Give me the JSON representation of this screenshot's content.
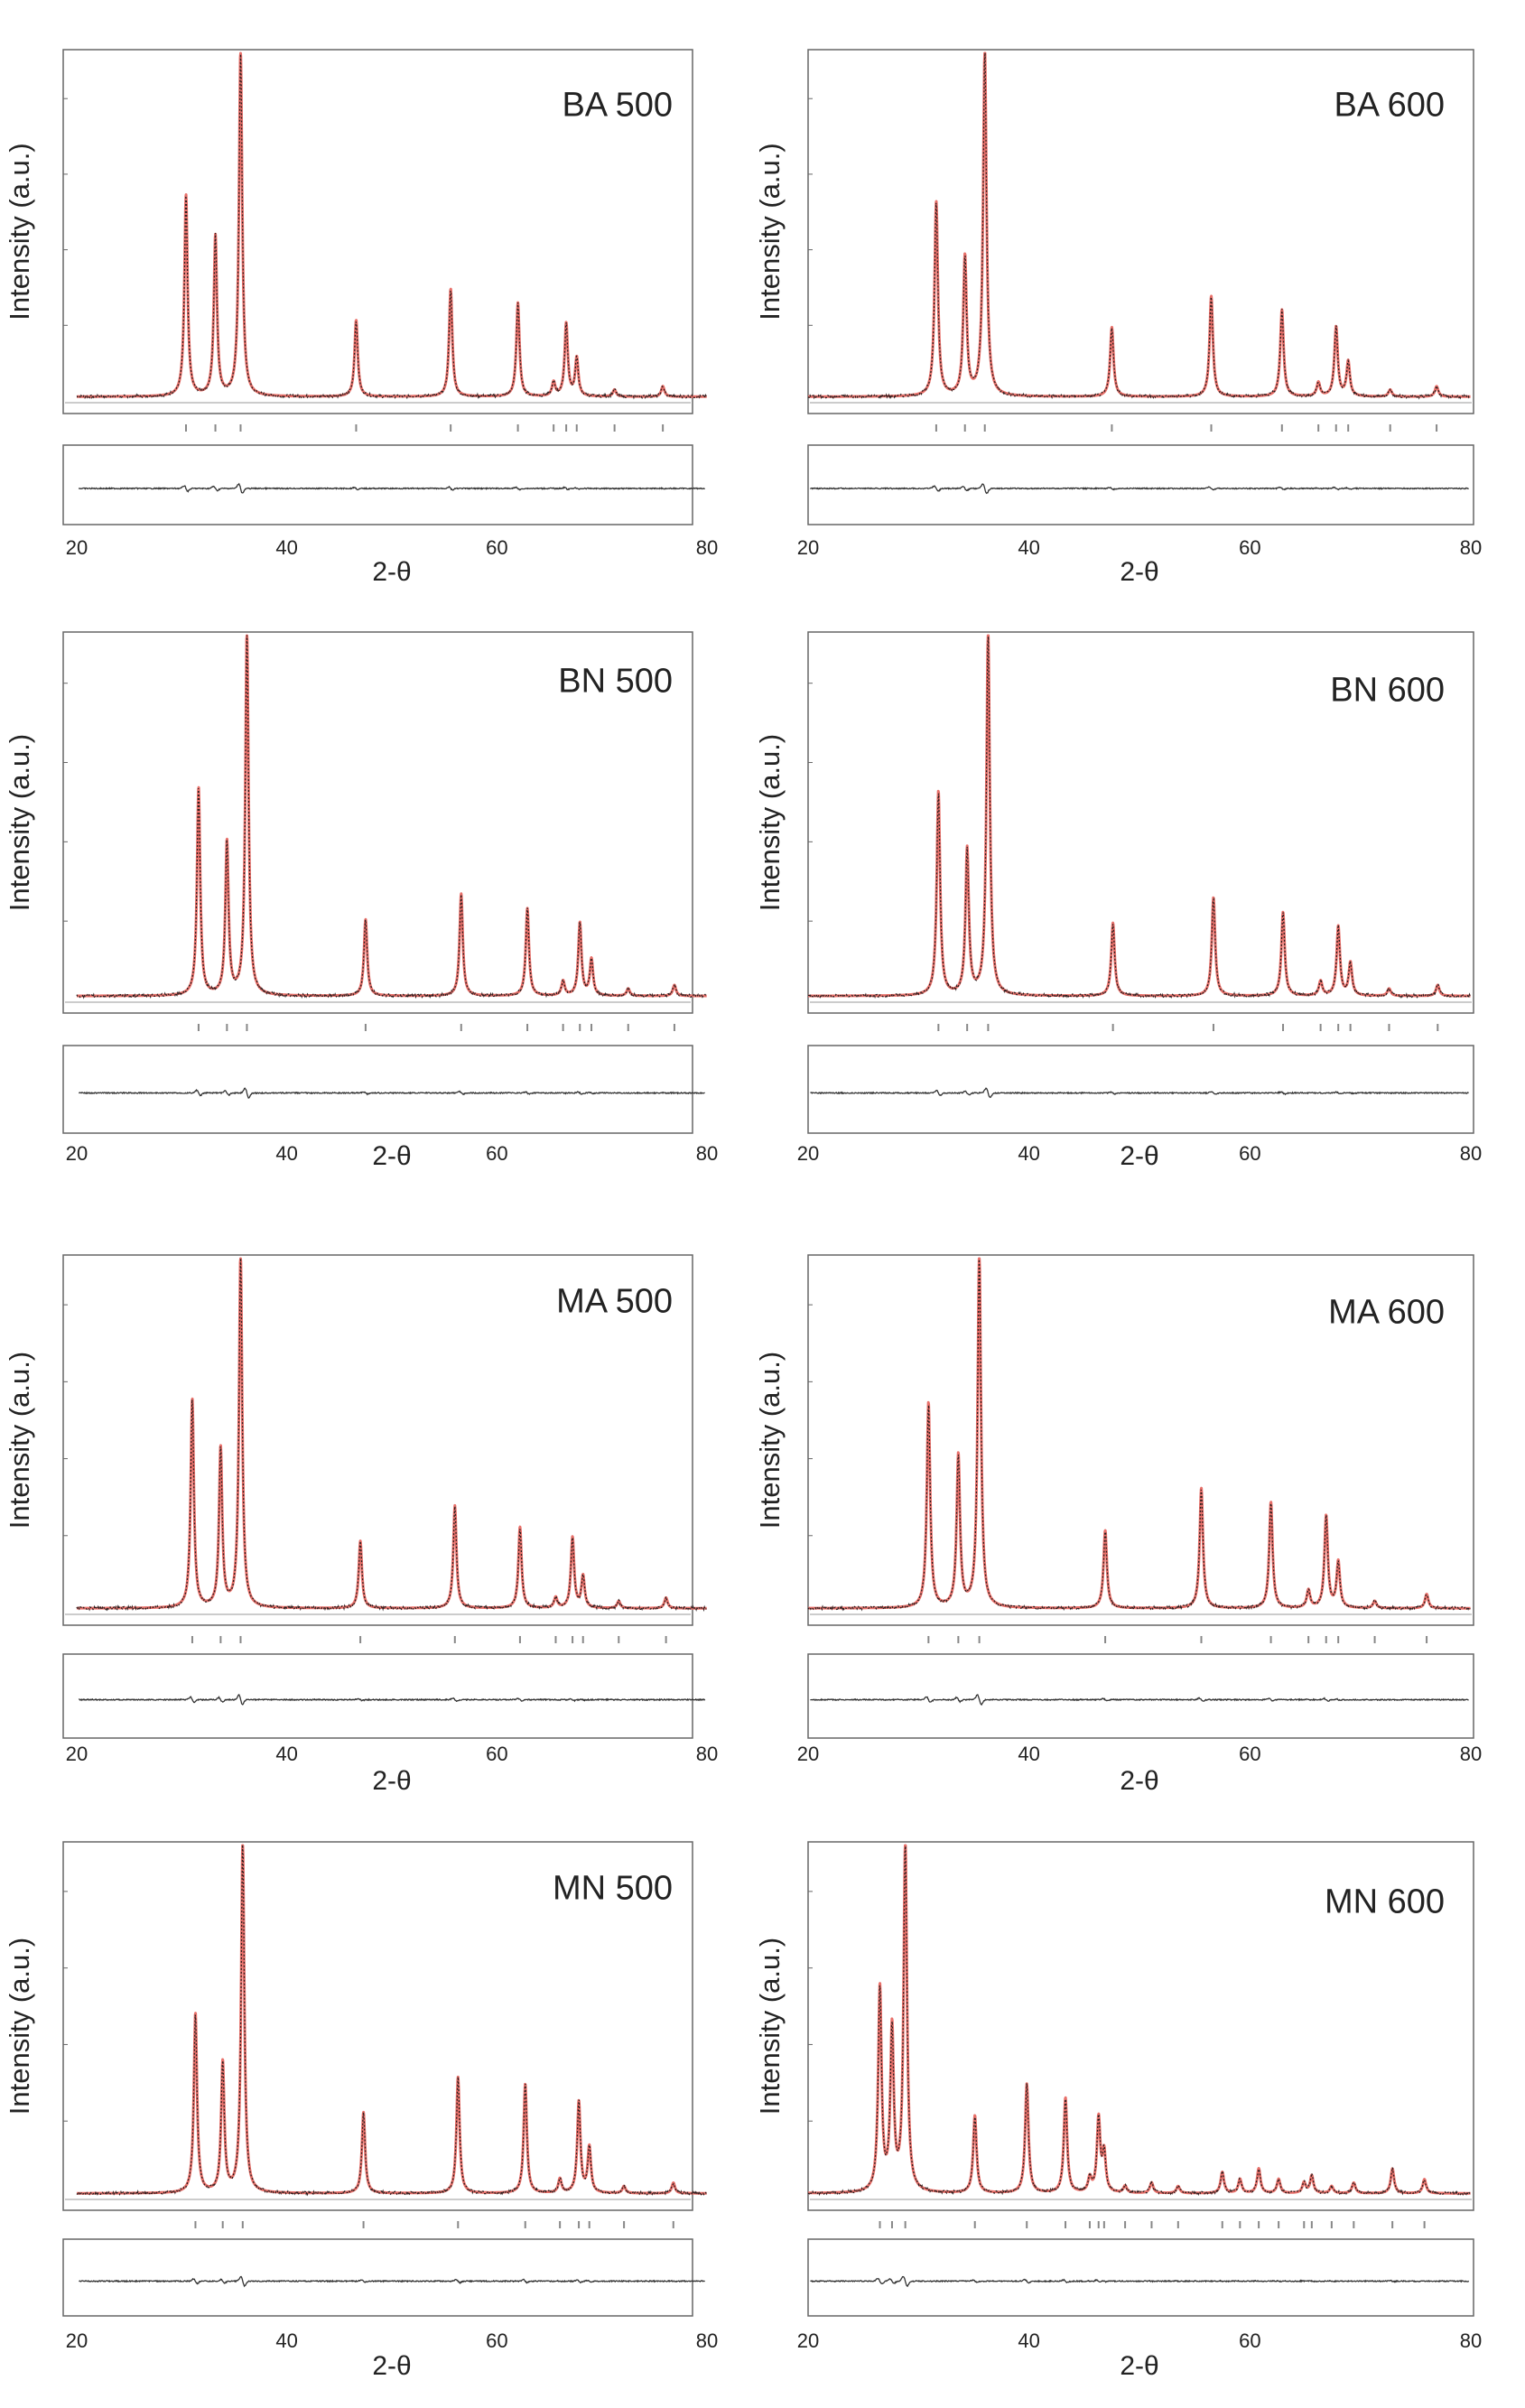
{
  "figure": {
    "common": {
      "ylabel": "Intensity (a.u.)",
      "xlabel": "2-θ",
      "xlim": [
        20,
        80
      ],
      "xticks": [
        20,
        40,
        60,
        80
      ],
      "ylim": [
        0,
        100
      ],
      "colors": {
        "calc": "#e8706a",
        "obs": "#2a1d1d",
        "diff": "#333333",
        "axis": "#666666",
        "marker": "#888888"
      }
    }
  },
  "chart_data": [
    {
      "type": "line",
      "title": "BA 500",
      "xlabel": "2-θ",
      "ylabel": "Intensity (a.u.)",
      "xlim": [
        20,
        80
      ],
      "peaks": [
        {
          "x": 30.4,
          "y": 58
        },
        {
          "x": 33.2,
          "y": 46
        },
        {
          "x": 35.6,
          "y": 100
        },
        {
          "x": 46.6,
          "y": 22
        },
        {
          "x": 55.6,
          "y": 31
        },
        {
          "x": 62.0,
          "y": 27
        },
        {
          "x": 65.4,
          "y": 4
        },
        {
          "x": 66.6,
          "y": 21
        },
        {
          "x": 67.6,
          "y": 11
        },
        {
          "x": 71.2,
          "y": 2
        },
        {
          "x": 75.8,
          "y": 3
        }
      ]
    },
    {
      "type": "line",
      "title": "BA 600",
      "xlabel": "2-θ",
      "ylabel": "Intensity (a.u.)",
      "xlim": [
        20,
        80
      ],
      "peaks": [
        {
          "x": 31.6,
          "y": 56
        },
        {
          "x": 34.2,
          "y": 40
        },
        {
          "x": 36.0,
          "y": 100
        },
        {
          "x": 47.5,
          "y": 20
        },
        {
          "x": 56.5,
          "y": 29
        },
        {
          "x": 62.9,
          "y": 25
        },
        {
          "x": 66.2,
          "y": 4
        },
        {
          "x": 67.8,
          "y": 20
        },
        {
          "x": 68.9,
          "y": 10
        },
        {
          "x": 72.7,
          "y": 2
        },
        {
          "x": 76.9,
          "y": 3
        }
      ]
    },
    {
      "type": "line",
      "title": "BN 500",
      "xlabel": "2-θ",
      "ylabel": "Intensity (a.u.)",
      "xlim": [
        20,
        80
      ],
      "peaks": [
        {
          "x": 31.6,
          "y": 57
        },
        {
          "x": 34.3,
          "y": 42
        },
        {
          "x": 36.2,
          "y": 100
        },
        {
          "x": 47.5,
          "y": 21
        },
        {
          "x": 56.6,
          "y": 28
        },
        {
          "x": 62.9,
          "y": 24
        },
        {
          "x": 66.3,
          "y": 4
        },
        {
          "x": 67.9,
          "y": 20
        },
        {
          "x": 69.0,
          "y": 10
        },
        {
          "x": 72.5,
          "y": 2
        },
        {
          "x": 76.9,
          "y": 3
        }
      ]
    },
    {
      "type": "line",
      "title": "BN 600",
      "xlabel": "2-θ",
      "ylabel": "Intensity (a.u.)",
      "xlim": [
        20,
        80
      ],
      "peaks": [
        {
          "x": 31.8,
          "y": 56
        },
        {
          "x": 34.4,
          "y": 40
        },
        {
          "x": 36.3,
          "y": 100
        },
        {
          "x": 47.6,
          "y": 20
        },
        {
          "x": 56.7,
          "y": 27
        },
        {
          "x": 63.0,
          "y": 23
        },
        {
          "x": 66.4,
          "y": 4
        },
        {
          "x": 68.0,
          "y": 19
        },
        {
          "x": 69.1,
          "y": 9
        },
        {
          "x": 72.6,
          "y": 2
        },
        {
          "x": 77.0,
          "y": 3
        }
      ]
    },
    {
      "type": "line",
      "title": "MA 500",
      "xlabel": "2-θ",
      "ylabel": "Intensity (a.u.)",
      "xlim": [
        20,
        80
      ],
      "peaks": [
        {
          "x": 31.0,
          "y": 59
        },
        {
          "x": 33.7,
          "y": 45
        },
        {
          "x": 35.6,
          "y": 100
        },
        {
          "x": 47.0,
          "y": 19
        },
        {
          "x": 56.0,
          "y": 29
        },
        {
          "x": 62.2,
          "y": 23
        },
        {
          "x": 65.6,
          "y": 3
        },
        {
          "x": 67.2,
          "y": 20
        },
        {
          "x": 68.2,
          "y": 9
        },
        {
          "x": 71.6,
          "y": 2
        },
        {
          "x": 76.1,
          "y": 3
        }
      ]
    },
    {
      "type": "line",
      "title": "MA 600",
      "xlabel": "2-θ",
      "ylabel": "Intensity (a.u.)",
      "xlim": [
        20,
        80
      ],
      "peaks": [
        {
          "x": 30.9,
          "y": 58
        },
        {
          "x": 33.6,
          "y": 43
        },
        {
          "x": 35.5,
          "y": 100
        },
        {
          "x": 46.9,
          "y": 22
        },
        {
          "x": 55.6,
          "y": 34
        },
        {
          "x": 61.9,
          "y": 30
        },
        {
          "x": 65.3,
          "y": 5
        },
        {
          "x": 66.9,
          "y": 26
        },
        {
          "x": 68.0,
          "y": 13
        },
        {
          "x": 71.3,
          "y": 2
        },
        {
          "x": 76.0,
          "y": 4
        }
      ]
    },
    {
      "type": "line",
      "title": "MN 500",
      "xlabel": "2-θ",
      "ylabel": "Intensity (a.u.)",
      "xlim": [
        20,
        80
      ],
      "peaks": [
        {
          "x": 31.3,
          "y": 51
        },
        {
          "x": 33.9,
          "y": 37
        },
        {
          "x": 35.8,
          "y": 100
        },
        {
          "x": 47.3,
          "y": 23
        },
        {
          "x": 56.3,
          "y": 33
        },
        {
          "x": 62.7,
          "y": 31
        },
        {
          "x": 66.0,
          "y": 4
        },
        {
          "x": 67.8,
          "y": 26
        },
        {
          "x": 68.8,
          "y": 13
        },
        {
          "x": 72.1,
          "y": 2
        },
        {
          "x": 76.8,
          "y": 3
        }
      ]
    },
    {
      "type": "line",
      "title": "MN 600",
      "xlabel": "2-θ",
      "ylabel": "Intensity (a.u.)",
      "xlim": [
        20,
        80
      ],
      "peaks": [
        {
          "x": 26.5,
          "y": 58
        },
        {
          "x": 27.6,
          "y": 46
        },
        {
          "x": 28.8,
          "y": 100
        },
        {
          "x": 35.1,
          "y": 22
        },
        {
          "x": 39.8,
          "y": 31
        },
        {
          "x": 43.3,
          "y": 27
        },
        {
          "x": 45.5,
          "y": 4
        },
        {
          "x": 46.3,
          "y": 21
        },
        {
          "x": 46.8,
          "y": 11
        },
        {
          "x": 48.7,
          "y": 2
        },
        {
          "x": 51.1,
          "y": 3
        },
        {
          "x": 53.5,
          "y": 2
        },
        {
          "x": 57.5,
          "y": 6
        },
        {
          "x": 59.1,
          "y": 4
        },
        {
          "x": 60.8,
          "y": 7
        },
        {
          "x": 62.6,
          "y": 4
        },
        {
          "x": 64.9,
          "y": 3
        },
        {
          "x": 65.6,
          "y": 5
        },
        {
          "x": 67.4,
          "y": 2
        },
        {
          "x": 69.4,
          "y": 3
        },
        {
          "x": 72.9,
          "y": 7
        },
        {
          "x": 75.8,
          "y": 4
        }
      ]
    }
  ]
}
